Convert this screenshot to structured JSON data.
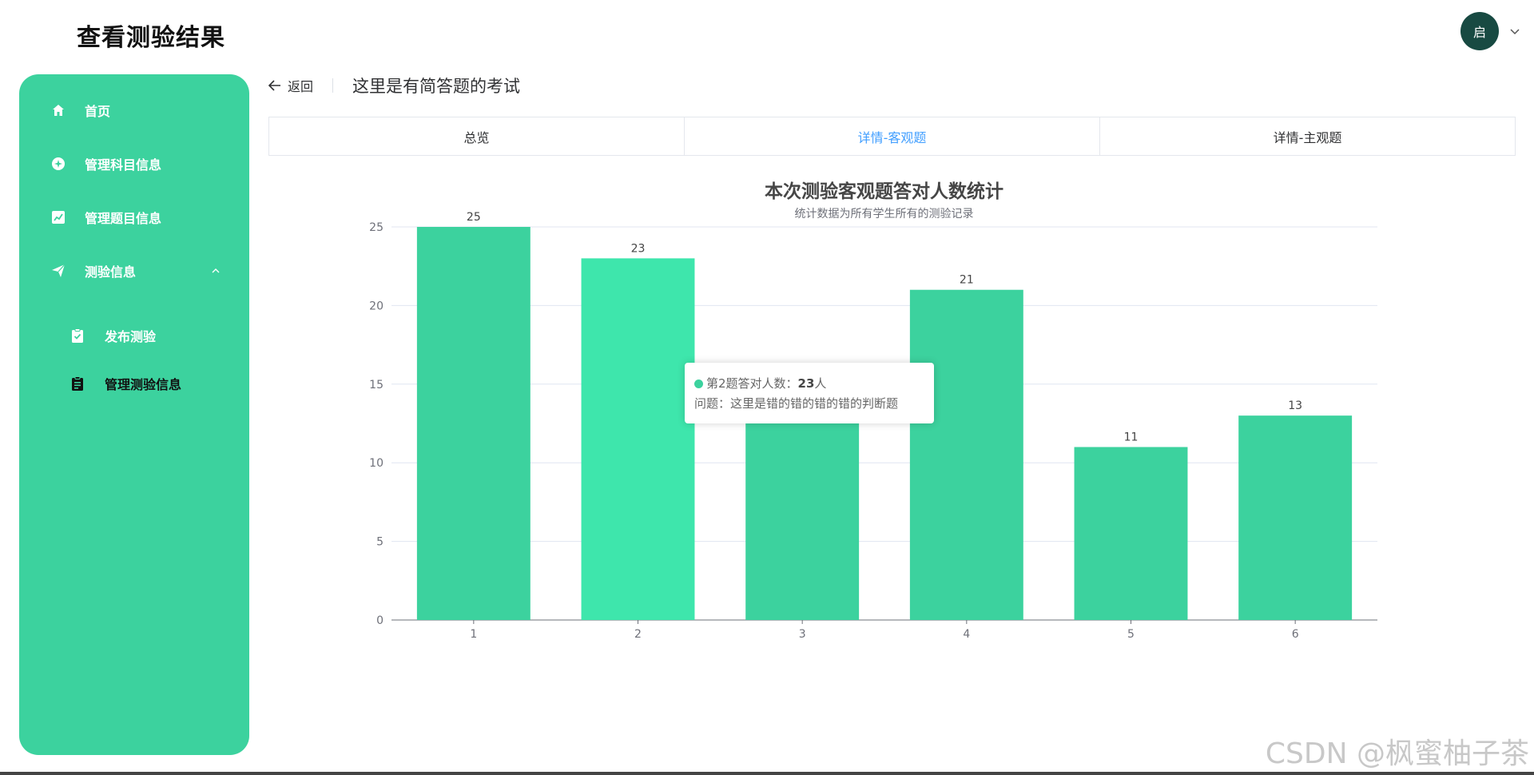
{
  "app_title": "查看测验结果",
  "user": {
    "avatar_text": "启"
  },
  "sidebar": {
    "items": [
      {
        "label": "首页",
        "icon": "home-icon"
      },
      {
        "label": "管理科目信息",
        "icon": "subject-icon"
      },
      {
        "label": "管理题目信息",
        "icon": "chart-line-icon"
      },
      {
        "label": "测验信息",
        "icon": "send-icon",
        "expanded": true
      },
      {
        "label": "发布测验",
        "icon": "clipboard-check-icon"
      },
      {
        "label": "管理测验信息",
        "icon": "clipboard-icon",
        "active": true
      }
    ]
  },
  "topbar": {
    "back_label": "返回",
    "page_title": "这里是有简答题的考试"
  },
  "tabs": [
    {
      "label": "总览"
    },
    {
      "label": "详情-客观题",
      "active": true
    },
    {
      "label": "详情-主观题"
    }
  ],
  "chart_data": {
    "type": "bar",
    "title": "本次测验客观题答对人数统计",
    "subtitle": "统计数据为所有学生所有的测验记录",
    "categories": [
      "1",
      "2",
      "3",
      "4",
      "5",
      "6"
    ],
    "values": [
      25,
      23,
      15,
      21,
      11,
      13
    ],
    "data_labels": [
      "25",
      "23",
      "",
      "21",
      "11",
      "13"
    ],
    "ylim": [
      0,
      25
    ],
    "yticks": [
      "0",
      "5",
      "10",
      "15",
      "20",
      "25"
    ],
    "grid": true,
    "bar_color": "#3cd29e",
    "highlight_color": "#3ee6ac",
    "highlighted_index": 1
  },
  "tooltip": {
    "line1_prefix": "第2题答对人数：",
    "line1_value": "23",
    "line1_suffix": "人",
    "line2": "问题：这里是错的错的错的错的判断题"
  },
  "watermark": "CSDN @枫蜜柚子茶",
  "colors": {
    "accent": "#3cd29e",
    "avatar": "#184a42",
    "tab_active": "#409eff"
  }
}
